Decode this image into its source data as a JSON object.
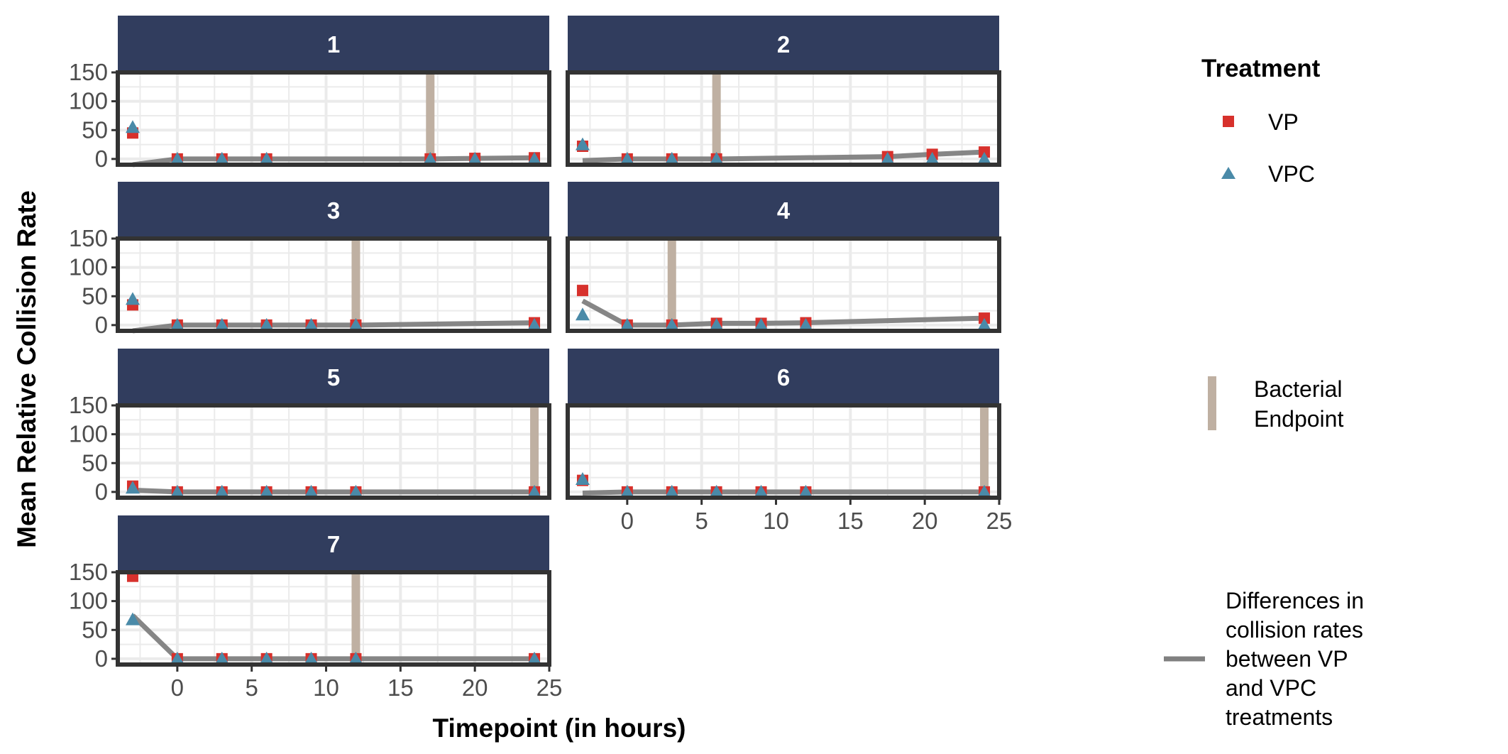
{
  "chart_data": {
    "type": "scatter",
    "xlabel": "Timepoint (in hours)",
    "ylabel": "Mean Relative Collision Rate",
    "xlim": [
      -4,
      25
    ],
    "ylim": [
      -10,
      150
    ],
    "x_ticks": [
      "0",
      "5",
      "10",
      "15",
      "20",
      "25"
    ],
    "y_ticks": [
      "0",
      "50",
      "100",
      "150"
    ],
    "grid": true,
    "legend_position": "right",
    "colors": {
      "VP": "#d7312c",
      "VPC": "#4a8aa8",
      "endpoint": "#bfb0a2",
      "difference": "#808080",
      "strip": "#313d5e",
      "panel_border": "#333333",
      "grid": "#ebebeb"
    },
    "legend": {
      "treatment_title": "Treatment",
      "vp_label": "VP",
      "vpc_label": "VPC",
      "endpoint_label_line1": "Bacterial",
      "endpoint_label_line2": "Endpoint",
      "difference_label_lines": [
        "Differences in",
        "collision rates",
        "between VP",
        "and VPC",
        "treatments"
      ]
    },
    "panels": [
      {
        "id": "1",
        "endpoint": 17,
        "vp": [
          [
            -3,
            45
          ],
          [
            0,
            0
          ],
          [
            3,
            0
          ],
          [
            6,
            0
          ],
          [
            17,
            0
          ],
          [
            20,
            1
          ],
          [
            24,
            2
          ]
        ],
        "vpc": [
          [
            -3,
            55
          ],
          [
            0,
            0
          ],
          [
            3,
            0
          ],
          [
            6,
            0
          ],
          [
            17,
            0
          ],
          [
            20,
            0
          ],
          [
            24,
            0
          ]
        ],
        "diff": [
          [
            -3,
            -10
          ],
          [
            0,
            0
          ],
          [
            3,
            0
          ],
          [
            6,
            0
          ],
          [
            17,
            0
          ],
          [
            20,
            1
          ],
          [
            24,
            2
          ]
        ]
      },
      {
        "id": "2",
        "endpoint": 6,
        "vp": [
          [
            -3,
            22
          ],
          [
            0,
            0
          ],
          [
            3,
            0
          ],
          [
            6,
            0
          ],
          [
            17.5,
            4
          ],
          [
            20.5,
            8
          ],
          [
            24,
            12
          ]
        ],
        "vpc": [
          [
            -3,
            25
          ],
          [
            0,
            0
          ],
          [
            3,
            0
          ],
          [
            6,
            0
          ],
          [
            17.5,
            0
          ],
          [
            20.5,
            0
          ],
          [
            24,
            0
          ]
        ],
        "diff": [
          [
            -3,
            -3
          ],
          [
            0,
            0
          ],
          [
            3,
            0
          ],
          [
            6,
            0
          ],
          [
            17.5,
            4
          ],
          [
            20.5,
            8
          ],
          [
            24,
            12
          ]
        ]
      },
      {
        "id": "3",
        "endpoint": 12,
        "vp": [
          [
            -3,
            35
          ],
          [
            0,
            0
          ],
          [
            3,
            0
          ],
          [
            6,
            0
          ],
          [
            9,
            0
          ],
          [
            12,
            0
          ],
          [
            24,
            4
          ]
        ],
        "vpc": [
          [
            -3,
            45
          ],
          [
            0,
            0
          ],
          [
            3,
            0
          ],
          [
            6,
            0
          ],
          [
            9,
            0
          ],
          [
            12,
            0
          ],
          [
            24,
            0
          ]
        ],
        "diff": [
          [
            -3,
            -10
          ],
          [
            0,
            0
          ],
          [
            3,
            0
          ],
          [
            6,
            0
          ],
          [
            9,
            0
          ],
          [
            12,
            0
          ],
          [
            24,
            4
          ]
        ]
      },
      {
        "id": "4",
        "endpoint": 3,
        "vp": [
          [
            -3,
            60
          ],
          [
            0,
            0
          ],
          [
            3,
            0
          ],
          [
            6,
            3
          ],
          [
            9,
            3
          ],
          [
            12,
            4
          ],
          [
            24,
            12
          ]
        ],
        "vpc": [
          [
            -3,
            18
          ],
          [
            0,
            0
          ],
          [
            3,
            0
          ],
          [
            6,
            0
          ],
          [
            9,
            0
          ],
          [
            12,
            0
          ],
          [
            24,
            0
          ]
        ],
        "diff": [
          [
            -3,
            42
          ],
          [
            0,
            0
          ],
          [
            3,
            0
          ],
          [
            6,
            3
          ],
          [
            9,
            3
          ],
          [
            12,
            4
          ],
          [
            24,
            12
          ]
        ]
      },
      {
        "id": "5",
        "endpoint": 24,
        "vp": [
          [
            -3,
            10
          ],
          [
            0,
            0
          ],
          [
            3,
            0
          ],
          [
            6,
            0
          ],
          [
            9,
            0
          ],
          [
            12,
            0
          ],
          [
            24,
            0
          ]
        ],
        "vpc": [
          [
            -3,
            7
          ],
          [
            0,
            0
          ],
          [
            3,
            0
          ],
          [
            6,
            0
          ],
          [
            9,
            0
          ],
          [
            12,
            0
          ],
          [
            24,
            0
          ]
        ],
        "diff": [
          [
            -3,
            3
          ],
          [
            0,
            0
          ],
          [
            3,
            0
          ],
          [
            6,
            0
          ],
          [
            9,
            0
          ],
          [
            12,
            0
          ],
          [
            24,
            0
          ]
        ]
      },
      {
        "id": "6",
        "endpoint": 24,
        "vp": [
          [
            -3,
            20
          ],
          [
            0,
            0
          ],
          [
            3,
            0
          ],
          [
            6,
            0
          ],
          [
            9,
            0
          ],
          [
            12,
            0
          ],
          [
            24,
            0
          ]
        ],
        "vpc": [
          [
            -3,
            22
          ],
          [
            0,
            0
          ],
          [
            3,
            0
          ],
          [
            6,
            0
          ],
          [
            9,
            0
          ],
          [
            12,
            0
          ],
          [
            24,
            0
          ]
        ],
        "diff": [
          [
            -3,
            -2
          ],
          [
            0,
            0
          ],
          [
            3,
            0
          ],
          [
            6,
            0
          ],
          [
            9,
            0
          ],
          [
            12,
            0
          ],
          [
            24,
            0
          ]
        ]
      },
      {
        "id": "7",
        "endpoint": 12,
        "vp": [
          [
            -3,
            143
          ],
          [
            0,
            0
          ],
          [
            3,
            0
          ],
          [
            6,
            0
          ],
          [
            9,
            0
          ],
          [
            12,
            0
          ],
          [
            24,
            0
          ]
        ],
        "vpc": [
          [
            -3,
            68
          ],
          [
            0,
            0
          ],
          [
            3,
            0
          ],
          [
            6,
            0
          ],
          [
            9,
            0
          ],
          [
            12,
            0
          ],
          [
            24,
            0
          ]
        ],
        "diff": [
          [
            -3,
            75
          ],
          [
            0,
            0
          ],
          [
            3,
            0
          ],
          [
            6,
            0
          ],
          [
            9,
            0
          ],
          [
            12,
            0
          ],
          [
            24,
            0
          ]
        ]
      }
    ]
  }
}
